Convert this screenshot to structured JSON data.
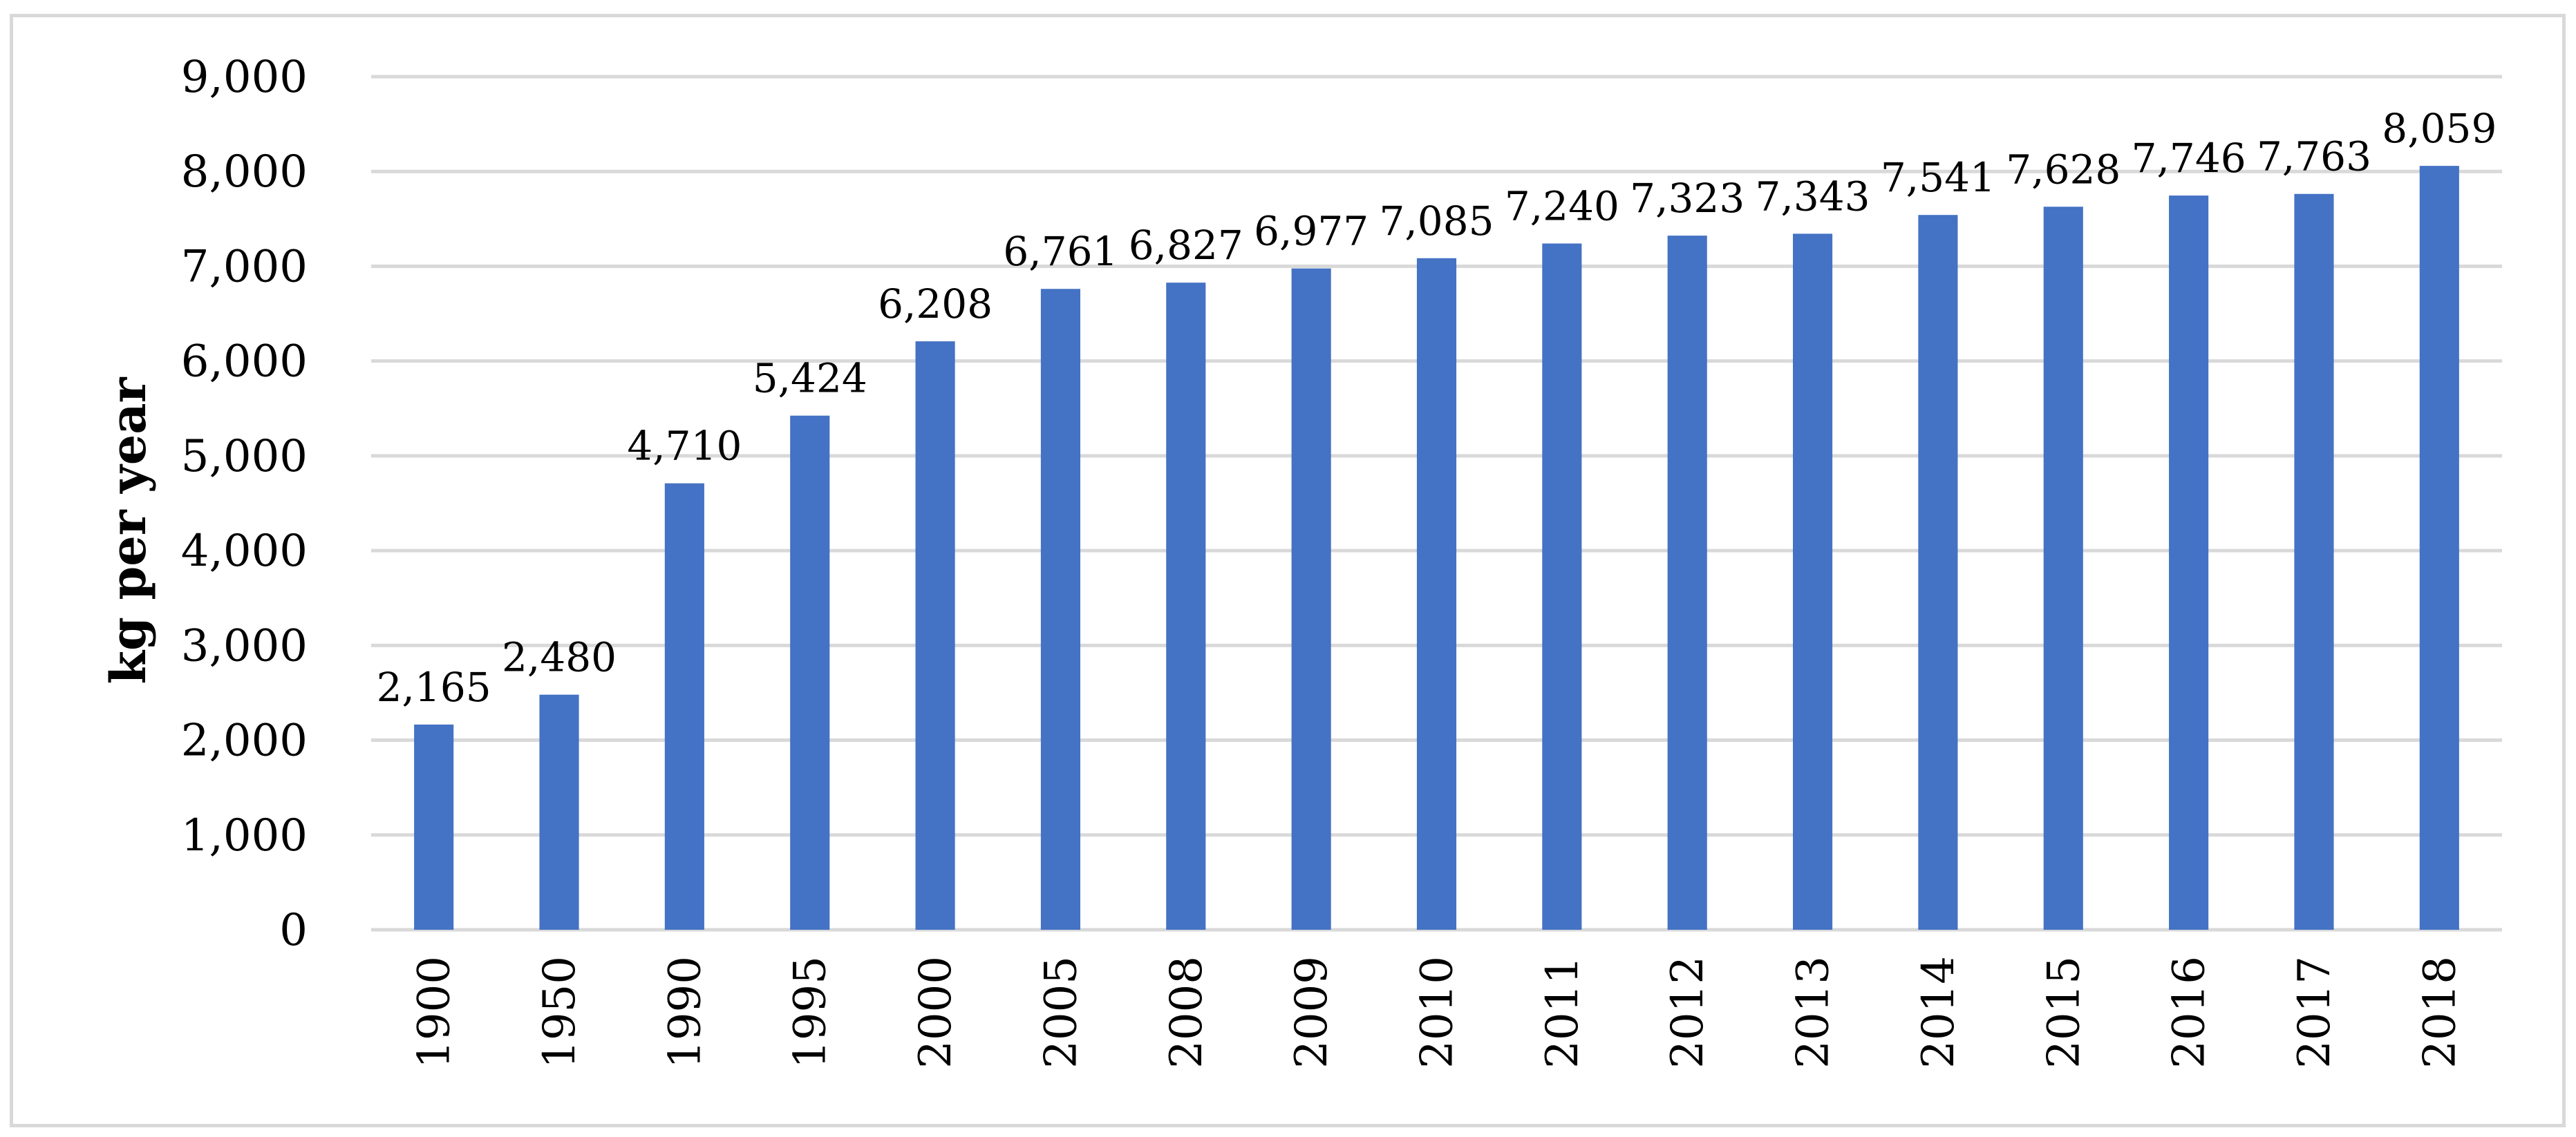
{
  "chart_data": {
    "type": "bar",
    "title": "",
    "xlabel": "",
    "ylabel": "kg per year",
    "categories": [
      "1900",
      "1950",
      "1990",
      "1995",
      "2000",
      "2005",
      "2008",
      "2009",
      "2010",
      "2011",
      "2012",
      "2013",
      "2014",
      "2015",
      "2016",
      "2017",
      "2018"
    ],
    "values": [
      2165,
      2480,
      4710,
      5424,
      6208,
      6761,
      6827,
      6977,
      7085,
      7240,
      7323,
      7343,
      7541,
      7628,
      7746,
      7763,
      8059
    ],
    "data_labels": [
      "2,165",
      "2,480",
      "4,710",
      "5,424",
      "6,208",
      "6,761",
      "6,827",
      "6,977",
      "7,085",
      "7,240",
      "7,323",
      "7,343",
      "7,541",
      "7,628",
      "7,746",
      "7,763",
      "8,059"
    ],
    "y_ticks": [
      0,
      1000,
      2000,
      3000,
      4000,
      5000,
      6000,
      7000,
      8000,
      9000
    ],
    "y_tick_labels": [
      "0",
      "1,000",
      "2,000",
      "3,000",
      "4,000",
      "5,000",
      "6,000",
      "7,000",
      "8,000",
      "9,000"
    ],
    "ylim": [
      0,
      9000
    ],
    "grid": true,
    "legend": "none",
    "bar_color": "#4472c4",
    "grid_color": "#d9d9d9"
  }
}
